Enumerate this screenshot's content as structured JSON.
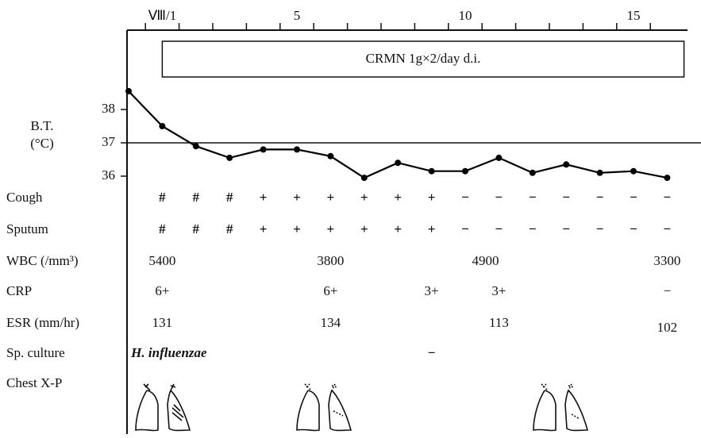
{
  "chart_data": {
    "type": "line",
    "y_label_lines": [
      "B.T.",
      "(°C)"
    ],
    "annotation": {
      "label": "CRMN 1g×2/day d.i.",
      "start": 1,
      "end": 16.5
    },
    "x": [
      0,
      1,
      2,
      3,
      4,
      5,
      6,
      7,
      8,
      9,
      10,
      11,
      12,
      13,
      14,
      15,
      16
    ],
    "values": [
      38.55,
      37.5,
      36.9,
      36.55,
      36.8,
      36.8,
      36.6,
      35.95,
      36.4,
      36.15,
      36.15,
      36.55,
      36.1,
      36.35,
      36.1,
      36.15,
      35.95
    ],
    "color": "#000000",
    "xlim": [
      0,
      16.6
    ],
    "xticks": [
      {
        "value": 1,
        "label": "Ⅷ/1"
      },
      5,
      10,
      15
    ],
    "xminorticks": [
      0.5,
      1.5,
      2.5,
      3.5,
      4.5,
      5.5,
      6.5,
      7.5,
      8.5,
      9.5,
      10.5,
      11.5,
      12.5,
      13.5,
      14.5,
      15.5
    ],
    "ylim": [
      35.5,
      38.7
    ],
    "yticks": [
      36,
      37,
      38
    ],
    "hline": 37
  },
  "clinical_rows": [
    {
      "label": "Cough",
      "cells": [
        {
          "day": 1,
          "text": "#"
        },
        {
          "day": 2,
          "text": "#"
        },
        {
          "day": 3,
          "text": "#"
        },
        {
          "day": 4,
          "text": "+"
        },
        {
          "day": 5,
          "text": "+"
        },
        {
          "day": 6,
          "text": "+"
        },
        {
          "day": 7,
          "text": "+"
        },
        {
          "day": 8,
          "text": "+"
        },
        {
          "day": 9,
          "text": "+"
        },
        {
          "day": 10,
          "text": "−"
        },
        {
          "day": 11,
          "text": "−"
        },
        {
          "day": 12,
          "text": "−"
        },
        {
          "day": 13,
          "text": "−"
        },
        {
          "day": 14,
          "text": "−"
        },
        {
          "day": 15,
          "text": "−"
        },
        {
          "day": 16,
          "text": "−"
        }
      ]
    },
    {
      "label": "Sputum",
      "cells": [
        {
          "day": 1,
          "text": "#"
        },
        {
          "day": 2,
          "text": "#"
        },
        {
          "day": 3,
          "text": "#"
        },
        {
          "day": 4,
          "text": "+"
        },
        {
          "day": 5,
          "text": "+"
        },
        {
          "day": 6,
          "text": "+"
        },
        {
          "day": 7,
          "text": "+"
        },
        {
          "day": 8,
          "text": "+"
        },
        {
          "day": 9,
          "text": "+"
        },
        {
          "day": 10,
          "text": "−"
        },
        {
          "day": 11,
          "text": "−"
        },
        {
          "day": 12,
          "text": "−"
        },
        {
          "day": 13,
          "text": "−"
        },
        {
          "day": 14,
          "text": "−"
        },
        {
          "day": 15,
          "text": "−"
        },
        {
          "day": 16,
          "text": "−"
        }
      ]
    },
    {
      "label": "WBC (/mm³)",
      "cells": [
        {
          "day": 1,
          "text": "5400"
        },
        {
          "day": 6,
          "text": "3800"
        },
        {
          "day": 10.6,
          "text": "4900"
        },
        {
          "day": 16,
          "text": "3300"
        }
      ]
    },
    {
      "label": "CRP",
      "cells": [
        {
          "day": 1,
          "text": "6+"
        },
        {
          "day": 6,
          "text": "6+"
        },
        {
          "day": 9,
          "text": "3+"
        },
        {
          "day": 11,
          "text": "3+"
        },
        {
          "day": 16,
          "text": "−"
        }
      ]
    },
    {
      "label": "ESR (mm/hr)",
      "cells": [
        {
          "day": 1,
          "text": "131"
        },
        {
          "day": 6,
          "text": "134"
        },
        {
          "day": 11,
          "text": "113"
        },
        {
          "day": 16,
          "text": "102"
        }
      ]
    },
    {
      "label": "Sp. culture",
      "cells": [
        {
          "day": 1.2,
          "text": "H. influenzae"
        },
        {
          "day": 9,
          "text": "−"
        }
      ]
    },
    {
      "label": "Chest X-P",
      "cells": []
    }
  ]
}
